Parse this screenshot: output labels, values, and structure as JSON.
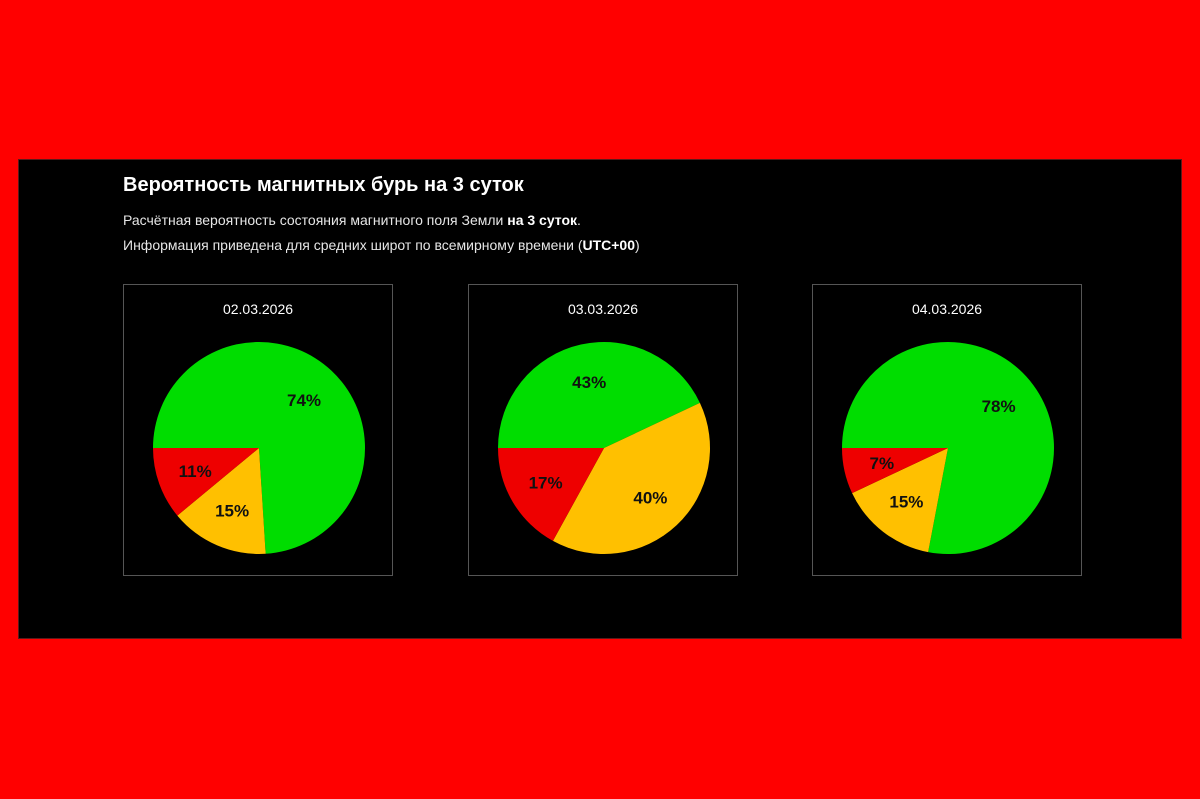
{
  "header": {
    "title": "Вероятность магнитных бурь на 3 суток",
    "line1_prefix": "Расчётная вероятность состояния магнитного поля Земли ",
    "line1_bold": "на 3 суток",
    "line1_suffix": ".",
    "line2_prefix": "Информация приведена для средних широт по всемирному времени (",
    "line2_bold": "UTC+00",
    "line2_suffix": ")"
  },
  "colors": {
    "green": "#00dd00",
    "yellow": "#ffc000",
    "red": "#ee0000"
  },
  "chart_data": [
    {
      "type": "pie",
      "title": "02.03.2026",
      "slices": [
        {
          "value": 74,
          "label": "74%",
          "color": "#00dd00"
        },
        {
          "value": 15,
          "label": "15%",
          "color": "#ffc000"
        },
        {
          "value": 11,
          "label": "11%",
          "color": "#ee0000"
        }
      ]
    },
    {
      "type": "pie",
      "title": "03.03.2026",
      "slices": [
        {
          "value": 43,
          "label": "43%",
          "color": "#00dd00"
        },
        {
          "value": 40,
          "label": "40%",
          "color": "#ffc000"
        },
        {
          "value": 17,
          "label": "17%",
          "color": "#ee0000"
        }
      ]
    },
    {
      "type": "pie",
      "title": "04.03.2026",
      "slices": [
        {
          "value": 78,
          "label": "78%",
          "color": "#00dd00"
        },
        {
          "value": 15,
          "label": "15%",
          "color": "#ffc000"
        },
        {
          "value": 7,
          "label": "7%",
          "color": "#ee0000"
        }
      ]
    }
  ]
}
